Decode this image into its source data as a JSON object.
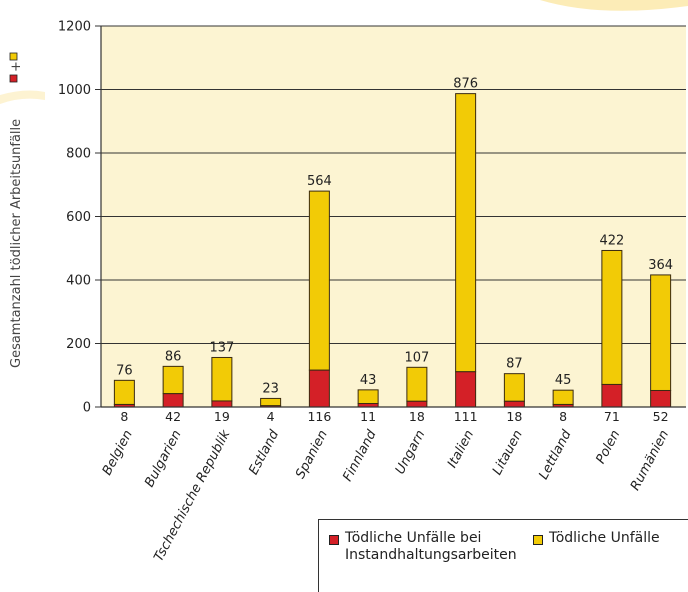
{
  "colors": {
    "plot_background": "#fcf4d2",
    "maintenance": "#d42027",
    "total": "#f2cb06",
    "bar_stroke": "#3a2a10",
    "accent_swoosh": "#fbe7a5"
  },
  "legend": {
    "maintenance_label": "Tödliche Unfälle bei Instandhaltungsarbeiten",
    "total_label": "Tödliche Unfälle"
  },
  "chart_data": {
    "type": "bar",
    "stacked": true,
    "ylabel": "Gesamtanzahl tödlicher Arbeitsunfälle",
    "ylabel_legend_glyphs": [
      "maintenance-swatch",
      "+",
      "total-swatch"
    ],
    "ylim": [
      0,
      1200
    ],
    "yticks": [
      0,
      200,
      400,
      600,
      800,
      1000,
      1200
    ],
    "grid": true,
    "legend_position": "bottom-right",
    "categories": [
      "Belgien",
      "Bulgarien",
      "Tschechische Republik",
      "Estland",
      "Spanien",
      "Finnland",
      "Ungarn",
      "Italien",
      "Litauen",
      "Lettland",
      "Polen",
      "Rumänien"
    ],
    "series": [
      {
        "name": "Tödliche Unfälle bei Instandhaltungsarbeiten",
        "values": [
          8,
          42,
          19,
          4,
          116,
          11,
          18,
          111,
          18,
          8,
          71,
          52
        ]
      },
      {
        "name": "Tödliche Unfälle",
        "values": [
          76,
          86,
          137,
          23,
          564,
          43,
          107,
          876,
          87,
          45,
          422,
          364
        ]
      }
    ]
  }
}
